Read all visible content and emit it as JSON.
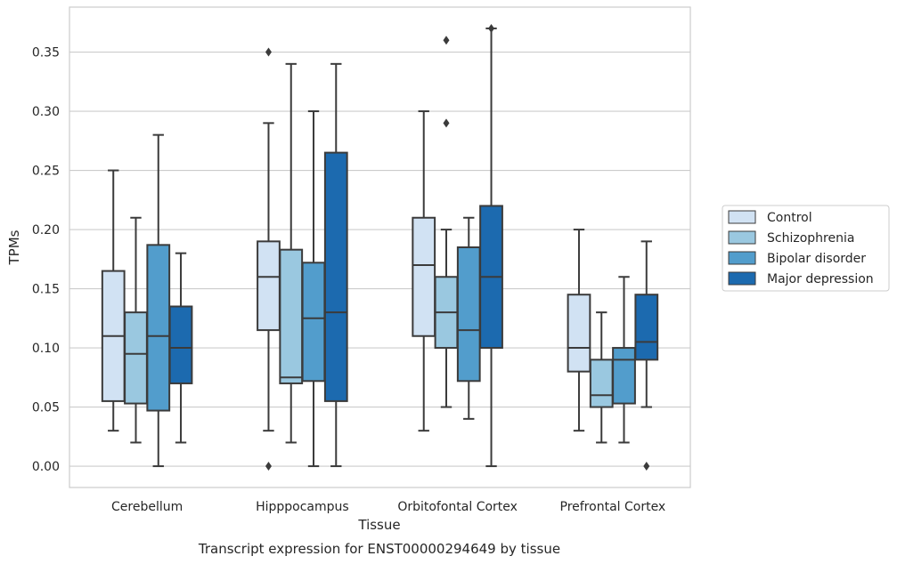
{
  "caption": "Transcript expression for ENST00000294649 by tissue",
  "chart_data": {
    "type": "box",
    "xlabel": "Tissue",
    "ylabel": "TPMs",
    "ylim": [
      -0.018,
      0.388
    ],
    "yticks": [
      0.0,
      0.05,
      0.1,
      0.15,
      0.2,
      0.25,
      0.3,
      0.35
    ],
    "ytick_labels": [
      "0.00",
      "0.05",
      "0.10",
      "0.15",
      "0.20",
      "0.25",
      "0.30",
      "0.35"
    ],
    "grid": true,
    "legend_position": "right",
    "categories": [
      "Cerebellum",
      "Hipppocampus",
      "Orbitofontal Cortex",
      "Prefrontal Cortex"
    ],
    "series": [
      {
        "name": "Control",
        "color": "#d1e2f3",
        "boxes": [
          {
            "whislo": 0.03,
            "q1": 0.055,
            "med": 0.11,
            "q3": 0.165,
            "whishi": 0.25,
            "fliers": []
          },
          {
            "whislo": 0.03,
            "q1": 0.115,
            "med": 0.16,
            "q3": 0.19,
            "whishi": 0.29,
            "fliers": [
              0.35,
              0.0
            ]
          },
          {
            "whislo": 0.03,
            "q1": 0.11,
            "med": 0.17,
            "q3": 0.21,
            "whishi": 0.3,
            "fliers": []
          },
          {
            "whislo": 0.03,
            "q1": 0.08,
            "med": 0.1,
            "q3": 0.145,
            "whishi": 0.2,
            "fliers": []
          }
        ]
      },
      {
        "name": "Schizophrenia",
        "color": "#9ac8e0",
        "boxes": [
          {
            "whislo": 0.02,
            "q1": 0.053,
            "med": 0.095,
            "q3": 0.13,
            "whishi": 0.21,
            "fliers": []
          },
          {
            "whislo": 0.02,
            "q1": 0.07,
            "med": 0.075,
            "q3": 0.183,
            "whishi": 0.34,
            "fliers": []
          },
          {
            "whislo": 0.05,
            "q1": 0.1,
            "med": 0.13,
            "q3": 0.16,
            "whishi": 0.2,
            "fliers": [
              0.36,
              0.29
            ]
          },
          {
            "whislo": 0.02,
            "q1": 0.05,
            "med": 0.06,
            "q3": 0.09,
            "whishi": 0.13,
            "fliers": []
          }
        ]
      },
      {
        "name": "Bipolar disorder",
        "color": "#529dcc",
        "boxes": [
          {
            "whislo": 0.0,
            "q1": 0.047,
            "med": 0.11,
            "q3": 0.187,
            "whishi": 0.28,
            "fliers": []
          },
          {
            "whislo": 0.0,
            "q1": 0.072,
            "med": 0.125,
            "q3": 0.172,
            "whishi": 0.3,
            "fliers": []
          },
          {
            "whislo": 0.04,
            "q1": 0.072,
            "med": 0.115,
            "q3": 0.185,
            "whishi": 0.21,
            "fliers": []
          },
          {
            "whislo": 0.02,
            "q1": 0.053,
            "med": 0.09,
            "q3": 0.1,
            "whishi": 0.16,
            "fliers": []
          }
        ]
      },
      {
        "name": "Major depression",
        "color": "#1c6aaf",
        "boxes": [
          {
            "whislo": 0.02,
            "q1": 0.07,
            "med": 0.1,
            "q3": 0.135,
            "whishi": 0.18,
            "fliers": []
          },
          {
            "whislo": 0.0,
            "q1": 0.055,
            "med": 0.13,
            "q3": 0.265,
            "whishi": 0.34,
            "fliers": []
          },
          {
            "whislo": 0.0,
            "q1": 0.1,
            "med": 0.16,
            "q3": 0.22,
            "whishi": 0.37,
            "fliers": [
              0.37
            ]
          },
          {
            "whislo": 0.05,
            "q1": 0.09,
            "med": 0.105,
            "q3": 0.145,
            "whishi": 0.19,
            "fliers": [
              0.0
            ]
          }
        ]
      }
    ]
  }
}
